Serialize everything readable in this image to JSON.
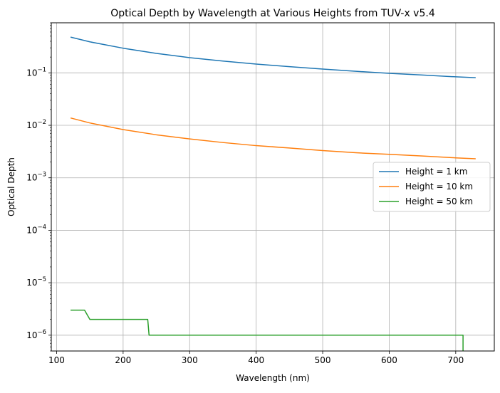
{
  "chart_data": {
    "type": "line",
    "title": "Optical Depth by Wavelength at Various Heights from TUV-x v5.4",
    "xlabel": "Wavelength (nm)",
    "ylabel": "Optical Depth",
    "yscale": "log",
    "xlim": [
      92,
      758
    ],
    "ylim": [
      5e-07,
      0.9
    ],
    "grid": true,
    "legend_position": "center-right",
    "x_ticks": [
      {
        "value": 100,
        "label": "100"
      },
      {
        "value": 200,
        "label": "200"
      },
      {
        "value": 300,
        "label": "300"
      },
      {
        "value": 400,
        "label": "400"
      },
      {
        "value": 500,
        "label": "500"
      },
      {
        "value": 600,
        "label": "600"
      },
      {
        "value": 700,
        "label": "700"
      }
    ],
    "y_ticks": [
      {
        "value": 1e-06,
        "base": "10",
        "exp": "−6"
      },
      {
        "value": 1e-05,
        "base": "10",
        "exp": "−5"
      },
      {
        "value": 0.0001,
        "base": "10",
        "exp": "−4"
      },
      {
        "value": 0.001,
        "base": "10",
        "exp": "−3"
      },
      {
        "value": 0.01,
        "base": "10",
        "exp": "−2"
      },
      {
        "value": 0.1,
        "base": "10",
        "exp": "−1"
      }
    ],
    "series": [
      {
        "name": "Height = 1 km",
        "color": "#1f77b4",
        "x": [
          121,
          150,
          200,
          250,
          300,
          350,
          400,
          450,
          500,
          550,
          600,
          650,
          700,
          730
        ],
        "y": [
          0.48,
          0.39,
          0.295,
          0.235,
          0.195,
          0.168,
          0.147,
          0.131,
          0.118,
          0.107,
          0.098,
          0.091,
          0.084,
          0.081
        ]
      },
      {
        "name": "Height = 10 km",
        "color": "#ff7f0e",
        "x": [
          121,
          150,
          200,
          250,
          300,
          350,
          400,
          450,
          500,
          550,
          600,
          650,
          700,
          730
        ],
        "y": [
          0.0138,
          0.0111,
          0.0083,
          0.0066,
          0.0055,
          0.0047,
          0.0041,
          0.0037,
          0.0033,
          0.003,
          0.0028,
          0.0026,
          0.0024,
          0.0023
        ]
      },
      {
        "name": "Height = 50 km",
        "color": "#2ca02c",
        "x": [
          121,
          142,
          150,
          237,
          239,
          710,
          711,
          711
        ],
        "y": [
          3e-06,
          3e-06,
          2e-06,
          2e-06,
          1e-06,
          1e-06,
          1e-06,
          4e-07
        ]
      }
    ]
  }
}
